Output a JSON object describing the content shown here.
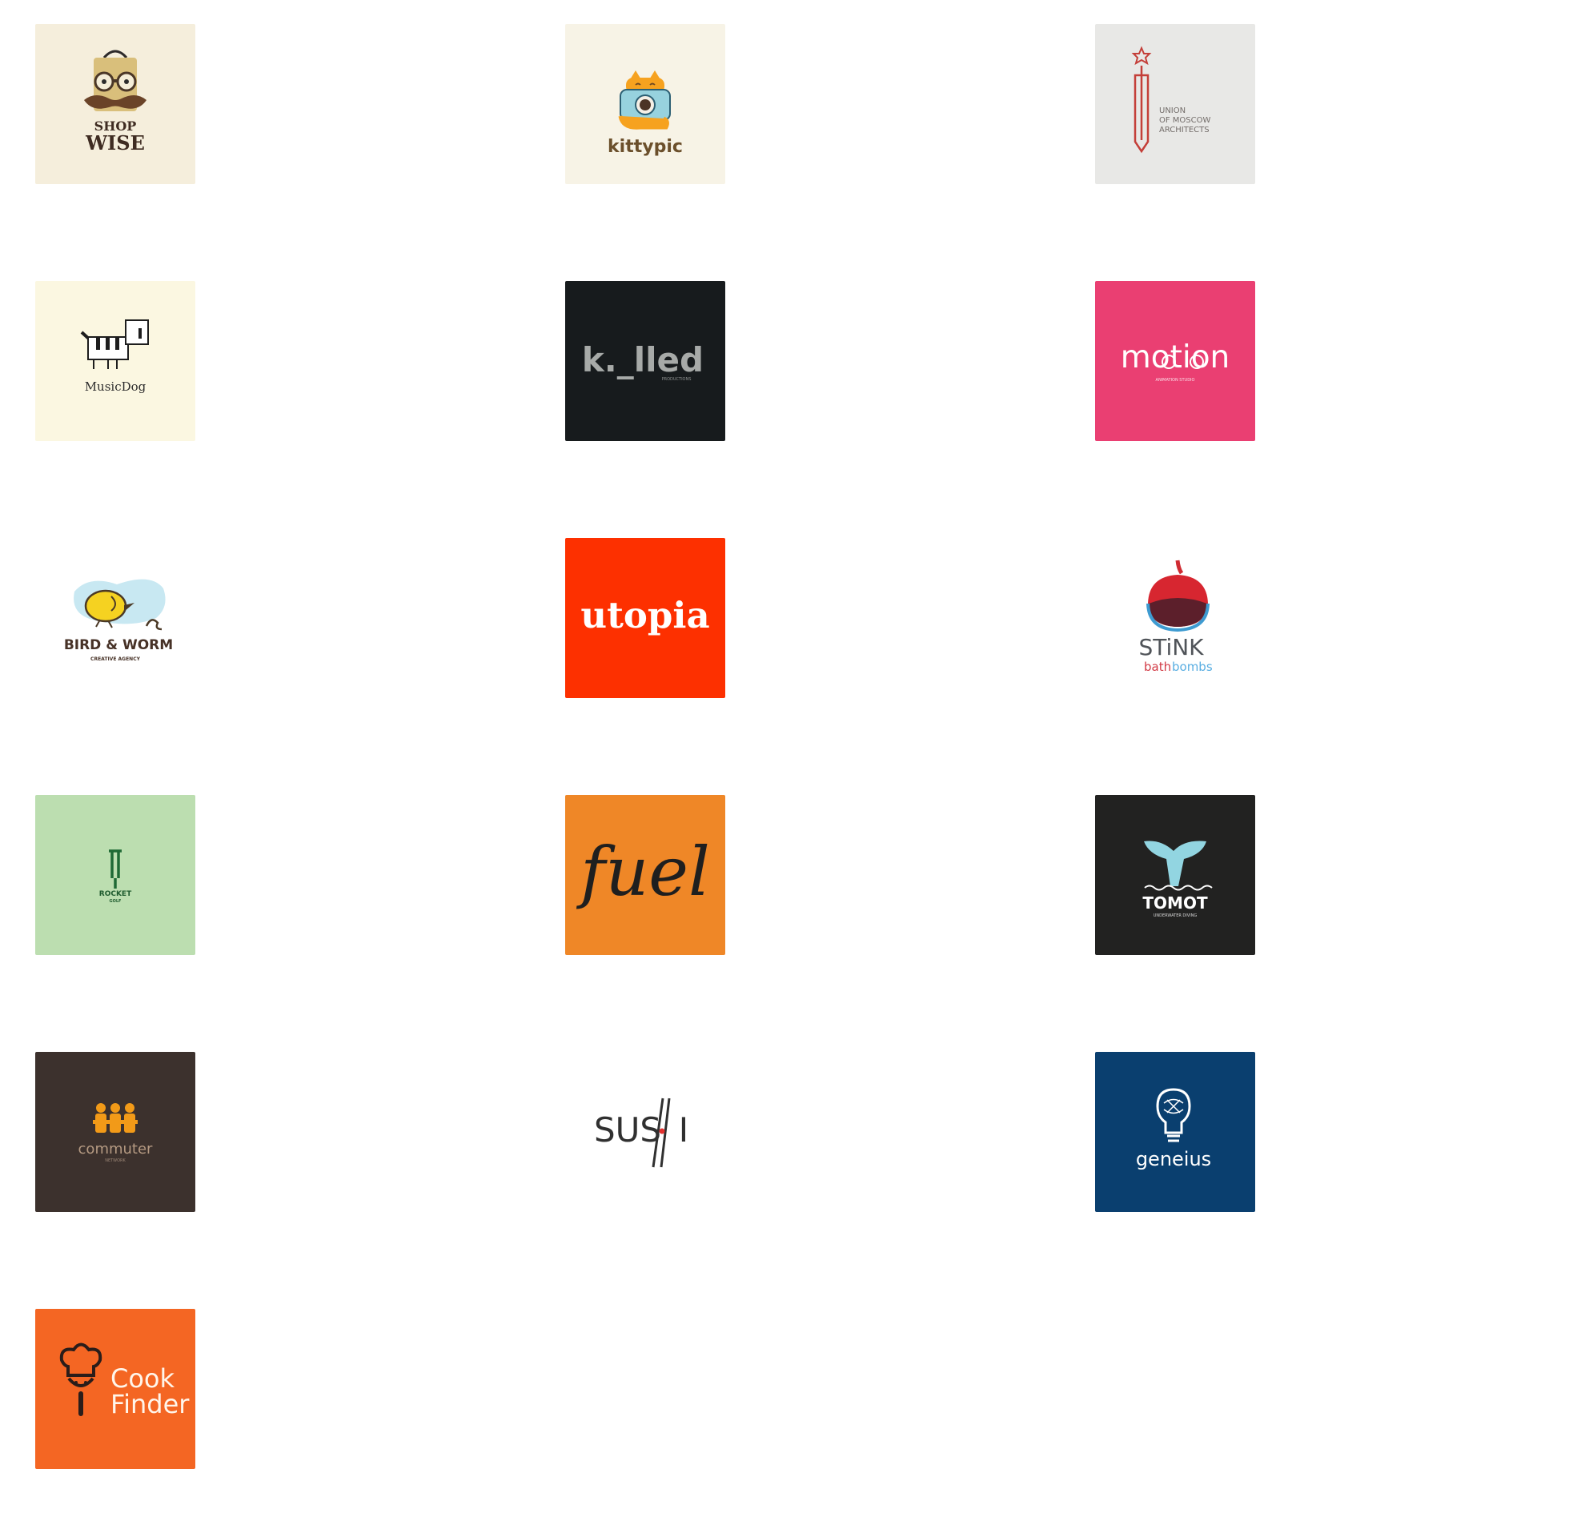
{
  "logos": {
    "shopwise": {
      "line1": "SHOP",
      "line2": "WISE"
    },
    "kittypic": {
      "name": "kittypic"
    },
    "moscow": {
      "line1": "UNION",
      "line2": "OF MOSCOW",
      "line3": "ARCHITECTS"
    },
    "musicdog": {
      "name": "MusicDog"
    },
    "killed": {
      "name": "k._lled",
      "sub": "PRODUCTIONS"
    },
    "motion": {
      "name": "motion",
      "sub": "ANIMATION STUDIO"
    },
    "birdworm": {
      "name": "BIRD & WORM",
      "sub": "CREATIVE AGENCY"
    },
    "utopia": {
      "name": "utopia"
    },
    "stink": {
      "line1": "STiNK",
      "line2a": "bath",
      "line2b": "bombs"
    },
    "rocket": {
      "name": "ROCKET",
      "sub": "GOLF"
    },
    "fuel": {
      "name": "fuel"
    },
    "tomot": {
      "name": "TOMOT",
      "sub": "UNDERWATER DIVING"
    },
    "commuter": {
      "name": "commuter",
      "sub": "NETWORK"
    },
    "sushi": {
      "name": "SUS",
      "tail": "I"
    },
    "geneius": {
      "name": "geneius"
    },
    "cookfinder": {
      "line1": "Cook",
      "line2": "Finder"
    }
  },
  "colors": {
    "shopwise_bg": "#f5eedc",
    "kittypic_bg": "#f7f3e6",
    "moscow_bg": "#e8e8e6",
    "musicdog_bg": "#fbf7e1",
    "killed_bg": "#171b1d",
    "motion_bg": "#ea3f72",
    "utopia_bg": "#fd3000",
    "rocket_bg": "#bcdeb0",
    "fuel_bg": "#ef8727",
    "tomot_bg": "#222221",
    "commuter_bg": "#3c312d",
    "geneius_bg": "#0a3f6f",
    "cookfinder_bg": "#f46623"
  }
}
